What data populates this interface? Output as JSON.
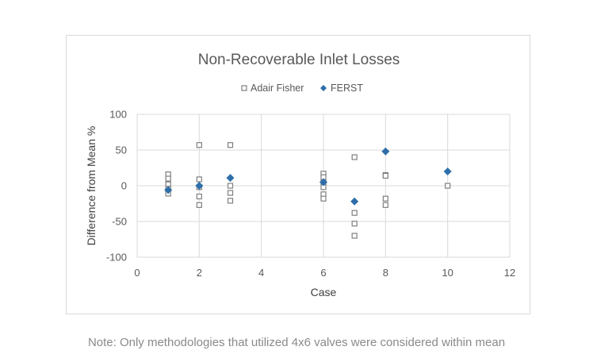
{
  "chart_data": {
    "type": "scatter",
    "title": "Non-Recoverable Inlet Losses",
    "xlabel": "Case",
    "ylabel": "Difference from Mean %",
    "xlim": [
      0,
      12
    ],
    "ylim": [
      -100,
      100
    ],
    "xticks": [
      0,
      2,
      4,
      6,
      8,
      10,
      12
    ],
    "yticks": [
      -100,
      -50,
      0,
      50,
      100
    ],
    "grid": "vertical and horizontal major gridlines",
    "legend_position": "top",
    "series": [
      {
        "name": "Adair Fisher",
        "marker": "hollow-square",
        "color": "#7f7f7f",
        "points": [
          [
            1,
            16
          ],
          [
            1,
            10
          ],
          [
            1,
            2
          ],
          [
            1,
            -4
          ],
          [
            1,
            -11
          ],
          [
            2,
            57
          ],
          [
            2,
            9
          ],
          [
            2,
            -2
          ],
          [
            2,
            -15
          ],
          [
            2,
            -27
          ],
          [
            3,
            57
          ],
          [
            3,
            0
          ],
          [
            3,
            -10
          ],
          [
            3,
            -21
          ],
          [
            6,
            17
          ],
          [
            6,
            12
          ],
          [
            6,
            5
          ],
          [
            6,
            -2
          ],
          [
            6,
            -12
          ],
          [
            6,
            -18
          ],
          [
            7,
            40
          ],
          [
            7,
            -38
          ],
          [
            7,
            -53
          ],
          [
            7,
            -70
          ],
          [
            8,
            15
          ],
          [
            8,
            14
          ],
          [
            8,
            -18
          ],
          [
            8,
            -27
          ],
          [
            10,
            0
          ]
        ]
      },
      {
        "name": "FERST",
        "marker": "filled-diamond",
        "color": "#2e6faa",
        "points": [
          [
            1,
            -6
          ],
          [
            2,
            0
          ],
          [
            3,
            11
          ],
          [
            6,
            5
          ],
          [
            7,
            -22
          ],
          [
            8,
            48
          ],
          [
            10,
            20
          ]
        ]
      }
    ]
  },
  "note": "Note: Only methodologies that utilized 4x6 valves were considered within mean"
}
